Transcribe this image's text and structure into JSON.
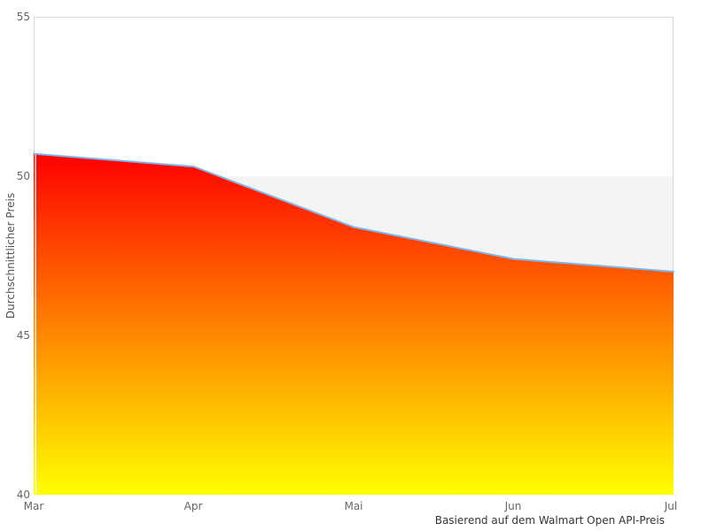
{
  "chart_data": {
    "type": "area",
    "categories": [
      "Mar",
      "Apr",
      "Mai",
      "Jun",
      "Jul"
    ],
    "values": [
      50.7,
      50.3,
      48.4,
      47.4,
      47.0
    ],
    "title": "",
    "xlabel": "Basierend auf dem Walmart Open API-Preis",
    "ylabel": "Durchschnittlicher Preis",
    "ylim": [
      40,
      55
    ],
    "yticks": [
      55,
      50,
      45,
      40
    ],
    "grid": false,
    "legend": false,
    "plot_band": {
      "from": 40,
      "to": 50,
      "color": "#f4f4f4"
    },
    "colors": {
      "line": "#7cb5ec",
      "area_gradient_top": "#ff0000",
      "area_gradient_bottom": "#ffff00",
      "plot_border": "#d6d6d6",
      "tick_label": "#666666",
      "axis_title": "#555555",
      "caption": "#333333"
    }
  }
}
